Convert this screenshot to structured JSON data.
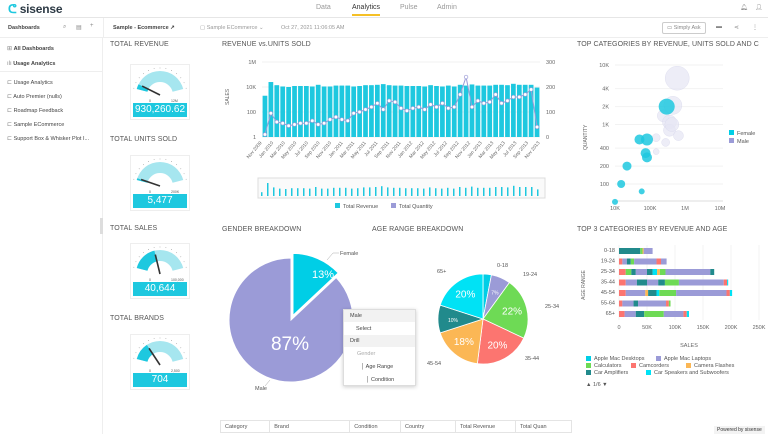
{
  "app": {
    "logo": "sisense",
    "nav": [
      "Data",
      "Analytics",
      "Pulse",
      "Admin"
    ],
    "active_nav": "Analytics"
  },
  "subheader": {
    "dashboards_label": "Dashboards",
    "dashboard_title": "Sample - Ecommerce ↗",
    "datasource": "Sample ECommerce ⌄",
    "timestamp": "Oct 27, 2021 11:06:05 AM",
    "simply_ask": "Simply Ask"
  },
  "sidebar": {
    "items": [
      {
        "label": "All Dashboards",
        "bold": true
      },
      {
        "label": "Usage Analytics",
        "bold": true
      },
      {
        "label": "Usage Analytics"
      },
      {
        "label": "Auto Premier (nulls)"
      },
      {
        "label": "Roadmap Feedback"
      },
      {
        "label": "Sample ECommerce"
      },
      {
        "label": "Support Box & Whisker Plot I..."
      }
    ]
  },
  "gauges": [
    {
      "title": "TOTAL REVENUE",
      "value": "930,260.62",
      "min": "0",
      "max": "12M",
      "fraction": 0.08
    },
    {
      "title": "TOTAL UNITS SOLD",
      "value": "5,477",
      "min": "0",
      "max": "200K",
      "fraction": 0.03
    },
    {
      "title": "TOTAL SALES",
      "value": "40,644",
      "min": "0",
      "max": "100,000",
      "fraction": 0.41
    },
    {
      "title": "TOTAL BRANDS",
      "value": "704",
      "min": "0",
      "max": "2,500",
      "fraction": 0.28
    }
  ],
  "colors": {
    "accent": "#1ec8df",
    "male": "#9b9bd7",
    "female": "#00cee6",
    "nav_active": "#f5c026"
  },
  "revenue_chart": {
    "title": "REVENUE vs.UNITS SOLD",
    "chart_data": {
      "type": "bar+line",
      "ylabel": "SALES",
      "y_left_ticks": [
        "1M",
        "10K",
        "100",
        "1"
      ],
      "y_right_ticks": [
        "300",
        "200",
        "100",
        "0"
      ],
      "y_left_scale": "log",
      "y_left_range": [
        1,
        1000000
      ],
      "y_right_range": [
        0,
        300
      ],
      "x_ticks": [
        "Nov 2009",
        "Jan 2010",
        "Mar 2010",
        "May 2010",
        "Jul 2010",
        "Sep 2010",
        "Nov 2010",
        "Jan 2011",
        "Mar 2011",
        "May 2011",
        "Jul 2011",
        "Sep 2011",
        "Nov 2011",
        "Jan 2012",
        "Mar 2012",
        "May 2012",
        "Jul 2012",
        "Sep 2012",
        "Nov 2012",
        "Jan 2013",
        "Mar 2013",
        "May 2013",
        "Jul 2013",
        "Sep 2013",
        "Nov 2013"
      ],
      "series": [
        {
          "name": "Total Revenue",
          "values": [
            2000,
            25000,
            14000,
            11000,
            10000,
            12000,
            12000,
            12000,
            11000,
            15000,
            11000,
            11000,
            13000,
            13000,
            13000,
            11000,
            12000,
            14000,
            14000,
            15000,
            17000,
            14000,
            13000,
            13000,
            12000,
            12000,
            12000,
            11000,
            14000,
            12000,
            11000,
            13000,
            11000,
            15000,
            13000,
            16000,
            13000,
            13000,
            13000,
            15000,
            15000,
            14000,
            18000,
            15000,
            15000,
            15000,
            9000
          ]
        },
        {
          "name": "Total Quantity",
          "values": [
            10,
            95,
            60,
            55,
            45,
            50,
            55,
            55,
            65,
            50,
            55,
            70,
            80,
            70,
            65,
            95,
            100,
            110,
            120,
            135,
            110,
            145,
            140,
            115,
            105,
            115,
            120,
            110,
            130,
            120,
            135,
            115,
            120,
            170,
            240,
            120,
            145,
            135,
            140,
            170,
            135,
            145,
            160,
            160,
            170,
            190,
            40
          ]
        }
      ]
    }
  },
  "scatter": {
    "title": "TOP CATEGORIES BY REVENUE, UNITS SOLD AND C",
    "chart_data": {
      "type": "scatter",
      "ylabel": "QUANTITY",
      "x_ticks": [
        "10K",
        "100K",
        "1M",
        "10M"
      ],
      "y_ticks": [
        "10K",
        "4K",
        "2K",
        "1K",
        "400",
        "200",
        "100"
      ],
      "x_scale": "log",
      "y_scale": "log",
      "series": [
        {
          "name": "Female",
          "points": [
            [
              10000,
              50,
              3
            ],
            [
              15000,
              100,
              4
            ],
            [
              22000,
              200,
              4.5
            ],
            [
              58000,
              75,
              3
            ],
            [
              75000,
              330,
              5
            ],
            [
              82000,
              280,
              5
            ],
            [
              50000,
              560,
              5
            ],
            [
              82000,
              560,
              6
            ],
            [
              300000,
              2000,
              8
            ]
          ]
        },
        {
          "name": "Male",
          "points": [
            [
              600000,
              6000,
              12
            ],
            [
              150000,
              600,
              4
            ],
            [
              240000,
              1400,
              6
            ],
            [
              360000,
              1100,
              7
            ],
            [
              450000,
              2100,
              9
            ],
            [
              360000,
              800,
              6
            ],
            [
              280000,
              500,
              4
            ],
            [
              650000,
              650,
              5
            ],
            [
              420000,
              1000,
              7
            ],
            [
              150000,
              350,
              3
            ]
          ]
        }
      ]
    }
  },
  "gender": {
    "title": "GENDER BREAKDOWN",
    "chart_data": {
      "type": "pie",
      "labels": [
        "Female",
        "Male"
      ],
      "values": [
        13,
        87
      ],
      "display": [
        "13%",
        "87%"
      ]
    }
  },
  "age": {
    "title": "AGE RANGE BREAKDOWN",
    "chart_data": {
      "type": "pie",
      "labels": [
        "0-18",
        "19-24",
        "25-34",
        "35-44",
        "45-54",
        "55-64",
        "65+"
      ],
      "values": [
        3,
        7,
        22,
        20,
        18,
        10,
        20
      ],
      "display": [
        "",
        "7%",
        "22%",
        "20%",
        "18%",
        "10%",
        "20%"
      ],
      "colors": [
        "#00cee6",
        "#9b9bd7",
        "#6eda55",
        "#fc7570",
        "#fbb755",
        "#218a8c",
        "#00e2f5"
      ]
    }
  },
  "context_menu": {
    "header": "Male",
    "items": [
      "Select",
      "Drill",
      "Gender",
      "Age Range",
      "Condition"
    ]
  },
  "top3": {
    "title": "TOP 3 CATEGORIES BY REVENUE AND AGE",
    "chart_data": {
      "type": "stacked-bar-horizontal",
      "ylabel": "AGE RANGE",
      "xlabel": "SALES",
      "x_ticks": [
        "0",
        "50K",
        "100K",
        "150K",
        "200K",
        "250K"
      ],
      "x_range": [
        0,
        250000
      ],
      "categories": [
        "0-18",
        "19-24",
        "25-34",
        "35-44",
        "45-54",
        "55-64",
        "65+"
      ],
      "legend": [
        "Apple Mac Desktops",
        "Apple Mac Laptops",
        "Calculators",
        "Camcorders",
        "Camera Flashes",
        "Car Amplifiers",
        "Car Speakers and Subwoofers"
      ],
      "legend_colors": [
        "#00cee6",
        "#9b9bd7",
        "#6eda55",
        "#fc7570",
        "#fbb755",
        "#218a8c",
        "#00e2f5"
      ],
      "legend_page": "1/6",
      "rows": [
        [
          [
            5,
            38000
          ],
          [
            2,
            4000
          ],
          [
            4,
            2000
          ],
          [
            1,
            16000
          ]
        ],
        [
          [
            3,
            6000
          ],
          [
            1,
            8000
          ],
          [
            5,
            7000
          ],
          [
            2,
            6000
          ],
          [
            1,
            40000
          ],
          [
            3,
            8000
          ],
          [
            1,
            10000
          ]
        ],
        [
          [
            3,
            12000
          ],
          [
            2,
            10000
          ],
          [
            5,
            8000
          ],
          [
            1,
            20000
          ],
          [
            5,
            10000
          ],
          [
            6,
            8000
          ],
          [
            4,
            5000
          ],
          [
            2,
            10000
          ],
          [
            1,
            80000
          ],
          [
            5,
            7000
          ]
        ],
        [
          [
            3,
            12000
          ],
          [
            1,
            20000
          ],
          [
            5,
            18000
          ],
          [
            1,
            20000
          ],
          [
            5,
            12000
          ],
          [
            2,
            25000
          ],
          [
            1,
            80000
          ],
          [
            3,
            6000
          ],
          [
            6,
            2000
          ]
        ],
        [
          [
            3,
            12000
          ],
          [
            1,
            35000
          ],
          [
            4,
            5000
          ],
          [
            5,
            15000
          ],
          [
            6,
            5000
          ],
          [
            2,
            30000
          ],
          [
            1,
            90000
          ],
          [
            3,
            6000
          ],
          [
            6,
            4000
          ]
        ],
        [
          [
            3,
            6000
          ],
          [
            1,
            20000
          ],
          [
            5,
            8000
          ],
          [
            1,
            50000
          ],
          [
            3,
            5000
          ],
          [
            2,
            3000
          ]
        ],
        [
          [
            3,
            10000
          ],
          [
            1,
            20000
          ],
          [
            5,
            15000
          ],
          [
            2,
            35000
          ],
          [
            1,
            35000
          ],
          [
            3,
            6000
          ],
          [
            6,
            4000
          ]
        ]
      ]
    }
  },
  "table": {
    "headers": [
      "Category",
      "Brand",
      "Condition",
      "Country",
      "Total Revenue",
      "Total Quan"
    ]
  },
  "footer": {
    "powered": "Powered by sisense"
  }
}
